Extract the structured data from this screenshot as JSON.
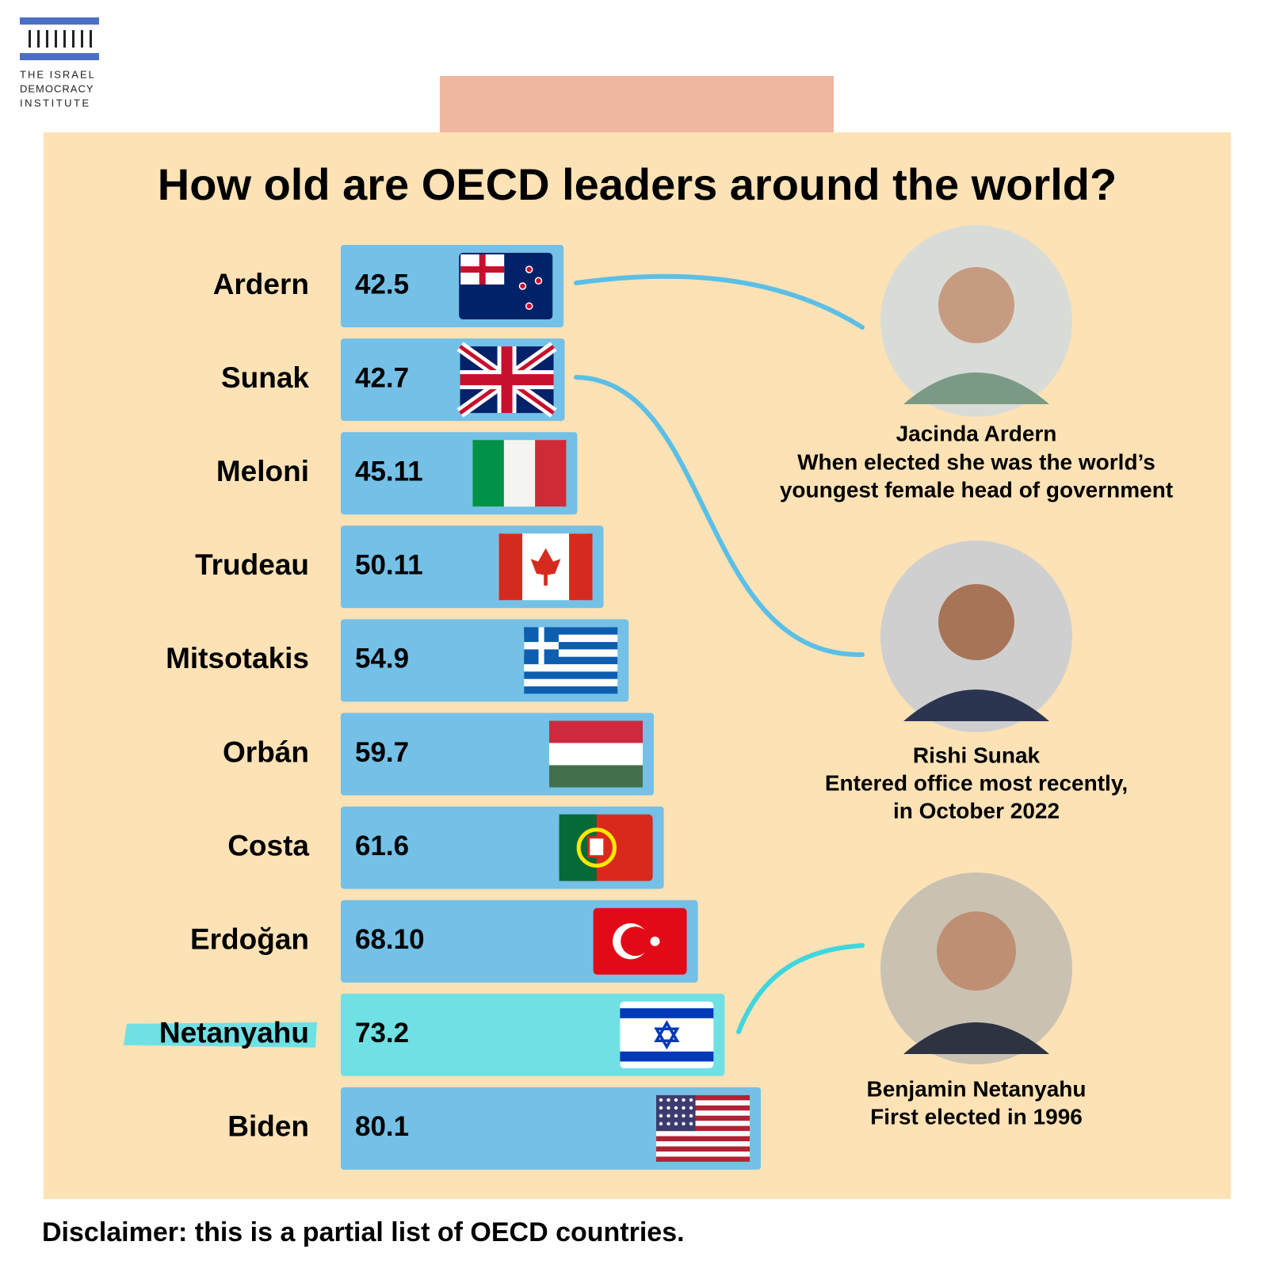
{
  "logo": {
    "lines": [
      "THE ISRAEL",
      "DEMOCRACY",
      "INSTITUTE"
    ]
  },
  "chart_data": {
    "type": "bar",
    "orientation": "horizontal",
    "title": "How old are OECD leaders around the world?",
    "categories": [
      "Ardern",
      "Sunak",
      "Meloni",
      "Trudeau",
      "Mitsotakis",
      "Orbán",
      "Costa",
      "Erdoğan",
      "Netanyahu",
      "Biden"
    ],
    "values": [
      42.5,
      42.7,
      45.11,
      50.11,
      54.9,
      59.7,
      61.6,
      68.1,
      73.2,
      80.1
    ],
    "value_labels": [
      "42.5",
      "42.7",
      "45.11",
      "50.11",
      "54.9",
      "59.7",
      "61.6",
      "68.10",
      "73.2",
      "80.1"
    ],
    "colors": [
      "#74c0e6",
      "#74c0e6",
      "#74c0e6",
      "#74c0e6",
      "#74c0e6",
      "#74c0e6",
      "#74c0e6",
      "#74c0e6",
      "#6fe0e4",
      "#74c0e6"
    ],
    "highlight_color": "#6fe0e4",
    "annotations": [
      {
        "name": "Jacinda Ardern",
        "lines": [
          "When elected she was the world’s",
          "youngest female head of government"
        ]
      },
      {
        "name": "Rishi Sunak",
        "lines": [
          "Entered office most recently,",
          "in October 2022"
        ]
      },
      {
        "name": "Benjamin Netanyahu",
        "lines": [
          "First elected in 1996"
        ]
      }
    ]
  },
  "disclaimer": "Disclaimer: this is a partial list of OECD countries."
}
